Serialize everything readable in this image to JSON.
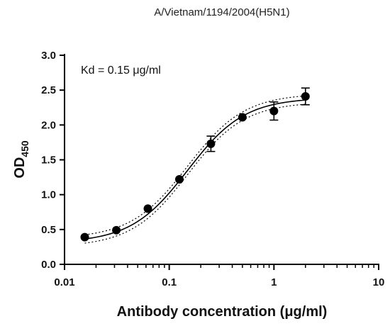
{
  "chart_data": {
    "type": "scatter",
    "title": "A/Vietnam/1194/2004(H5N1)",
    "annotation": "Kd = 0.15 μg/ml",
    "xlabel": "Antibody concentration (μg/ml)",
    "ylabel": {
      "main": "OD",
      "subscript": "450"
    },
    "x_scale": "log",
    "xlim": [
      0.01,
      10
    ],
    "ylim": [
      0.0,
      3.0
    ],
    "x_ticks": [
      {
        "value": 0.01,
        "label": "0.01"
      },
      {
        "value": 0.1,
        "label": "0.1"
      },
      {
        "value": 1,
        "label": "1"
      },
      {
        "value": 10,
        "label": "10"
      }
    ],
    "y_ticks": [
      {
        "value": 0.0,
        "label": "0.0"
      },
      {
        "value": 0.5,
        "label": "0.5"
      },
      {
        "value": 1.0,
        "label": "1.0"
      },
      {
        "value": 1.5,
        "label": "1.5"
      },
      {
        "value": 2.0,
        "label": "2.0"
      },
      {
        "value": 2.5,
        "label": "2.5"
      },
      {
        "value": 3.0,
        "label": "3.0"
      }
    ],
    "grid": false,
    "points": [
      {
        "x": 0.0156,
        "y": 0.39,
        "err": 0.0
      },
      {
        "x": 0.03125,
        "y": 0.49,
        "err": 0.0
      },
      {
        "x": 0.0625,
        "y": 0.8,
        "err": 0.0
      },
      {
        "x": 0.125,
        "y": 1.22,
        "err": 0.0
      },
      {
        "x": 0.25,
        "y": 1.73,
        "err": 0.11
      },
      {
        "x": 0.5,
        "y": 2.11,
        "err": 0.0
      },
      {
        "x": 1.0,
        "y": 2.2,
        "err": 0.13
      },
      {
        "x": 2.0,
        "y": 2.41,
        "err": 0.12
      }
    ],
    "fit": {
      "bottom": 0.31,
      "top": 2.39,
      "kd": 0.15,
      "hill": 1.6
    },
    "confidence_band_offset": 0.06,
    "colors": {
      "marker": "#000000",
      "fit_line": "#000000",
      "band": "#000000"
    }
  }
}
